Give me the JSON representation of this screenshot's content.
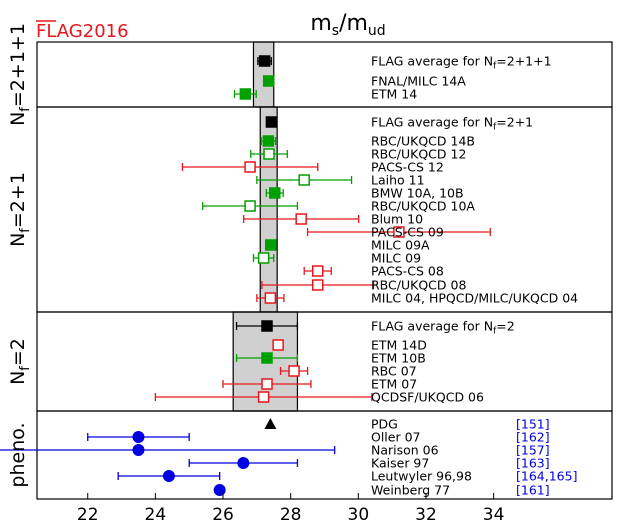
{
  "logo": {
    "text": "FLAG2016",
    "color": "#e8161c"
  },
  "chart_data": {
    "type": "forest",
    "title": "m_s/m_ud",
    "title_main": "m",
    "title_sub": "s",
    "title_mid": "/m",
    "title_sub2": "ud",
    "xlim": [
      20.5,
      37.5
    ],
    "xticks": [
      22,
      24,
      26,
      28,
      30,
      32,
      34
    ],
    "xtick_labels": [
      "22",
      "24",
      "26",
      "28",
      "30",
      "32",
      "34"
    ],
    "colors": {
      "average": "#000000",
      "qualified": "#00a000",
      "other": "#e8161c",
      "pheno": "#0000e0",
      "band": "#d0d0d0",
      "ref": "#0000e0"
    },
    "panels": [
      {
        "id": "nf2111",
        "label": "Nf=2+1+1",
        "band": [
          26.9,
          27.5
        ],
        "entries": [
          {
            "label": "FLAG average for Nf=2+1+1",
            "value": 27.23,
            "err": 0.2,
            "kind": "average",
            "marker": "square",
            "filled": true
          },
          {
            "label": "FNAL/MILC 14A",
            "value": 27.35,
            "err": 0.05,
            "kind": "qualified",
            "marker": "square",
            "filled": true
          },
          {
            "label": "ETM 14",
            "value": 26.66,
            "err": 0.32,
            "kind": "qualified",
            "marker": "square",
            "filled": true
          }
        ]
      },
      {
        "id": "nf21",
        "label": "Nf=2+1",
        "band": [
          27.1,
          27.6
        ],
        "entries": [
          {
            "label": "FLAG average for Nf=2+1",
            "value": 27.43,
            "err": 0.13,
            "kind": "average",
            "marker": "square",
            "filled": true
          },
          {
            "label": "RBC/UKQCD 14B",
            "value": 27.34,
            "err": 0.21,
            "kind": "qualified",
            "marker": "square",
            "filled": true
          },
          {
            "label": "RBC/UKQCD 12",
            "value": 27.36,
            "err": 0.54,
            "kind": "qualified",
            "marker": "square",
            "filled": false
          },
          {
            "label": "PACS-CS 12",
            "value": 26.8,
            "err": 2.0,
            "kind": "other",
            "marker": "square",
            "filled": false
          },
          {
            "label": "Laiho 11",
            "value": 28.4,
            "err": 1.4,
            "kind": "qualified",
            "marker": "square",
            "filled": false
          },
          {
            "label": "BMW 10A, 10B",
            "value": 27.53,
            "err": 0.25,
            "kind": "qualified",
            "marker": "square",
            "filled": true
          },
          {
            "label": "RBC/UKQCD 10A",
            "value": 26.8,
            "err": 1.4,
            "kind": "qualified",
            "marker": "square",
            "filled": false
          },
          {
            "label": "Blum 10",
            "value": 28.31,
            "err": 1.7,
            "kind": "other",
            "marker": "square",
            "filled": false
          },
          {
            "label": "PACS-CS 09",
            "value": 31.2,
            "err": 2.7,
            "kind": "other",
            "marker": "square",
            "filled": false
          },
          {
            "label": "MILC 09A",
            "value": 27.41,
            "err": 0.1,
            "kind": "qualified",
            "marker": "square",
            "filled": true
          },
          {
            "label": "MILC 09",
            "value": 27.2,
            "err": 0.3,
            "kind": "qualified",
            "marker": "square",
            "filled": false
          },
          {
            "label": "PACS-CS 08",
            "value": 28.8,
            "err": 0.4,
            "kind": "other",
            "marker": "square",
            "filled": false
          },
          {
            "label": "RBC/UKQCD 08",
            "value": 28.8,
            "err": 1.65,
            "kind": "other",
            "marker": "square",
            "filled": false
          },
          {
            "label": "MILC 04, HPQCD/MILC/UKQCD 04",
            "value": 27.4,
            "err": 0.4,
            "kind": "other",
            "marker": "square",
            "filled": false
          }
        ]
      },
      {
        "id": "nf2",
        "label": "Nf=2",
        "band": [
          26.3,
          28.2
        ],
        "entries": [
          {
            "label": "FLAG average for Nf=2",
            "value": 27.3,
            "err": 0.9,
            "kind": "average",
            "marker": "square",
            "filled": true
          },
          {
            "label": "ETM 14D",
            "value": 27.63,
            "err": 0.13,
            "kind": "other",
            "marker": "square",
            "filled": false
          },
          {
            "label": "ETM 10B",
            "value": 27.3,
            "err": 0.9,
            "kind": "qualified",
            "marker": "square",
            "filled": true
          },
          {
            "label": "RBC 07",
            "value": 28.1,
            "err": 0.4,
            "kind": "other",
            "marker": "square",
            "filled": false
          },
          {
            "label": "ETM 07",
            "value": 27.3,
            "err": 1.3,
            "kind": "other",
            "marker": "square",
            "filled": false
          },
          {
            "label": "QCDSF/UKQCD 06",
            "value": 27.2,
            "err": 3.2,
            "kind": "other",
            "marker": "square",
            "filled": false
          }
        ]
      },
      {
        "id": "pheno",
        "label": "pheno.",
        "band": null,
        "entries": [
          {
            "label": "PDG",
            "value": 27.4,
            "err": 0.0,
            "kind": "average",
            "marker": "triangle",
            "filled": true,
            "ref": "[151]"
          },
          {
            "label": "Oller 07",
            "value": 23.5,
            "err": 1.5,
            "kind": "pheno",
            "marker": "circle",
            "filled": true,
            "ref": "[162]"
          },
          {
            "label": "Narison 06",
            "value": 23.5,
            "err": 5.8,
            "kind": "pheno",
            "marker": "circle",
            "filled": true,
            "ref": "[157]"
          },
          {
            "label": "Kaiser 97",
            "value": 26.6,
            "err": 1.6,
            "kind": "pheno",
            "marker": "circle",
            "filled": true,
            "ref": "[163]"
          },
          {
            "label": "Leutwyler 96,98",
            "value": 24.4,
            "err": 1.5,
            "kind": "pheno",
            "marker": "circle",
            "filled": true,
            "ref": "[164,165]"
          },
          {
            "label": "Weinberg 77",
            "value": 25.9,
            "err": 0.0,
            "kind": "pheno",
            "marker": "circle",
            "filled": true,
            "ref": "[161]"
          }
        ]
      }
    ]
  }
}
